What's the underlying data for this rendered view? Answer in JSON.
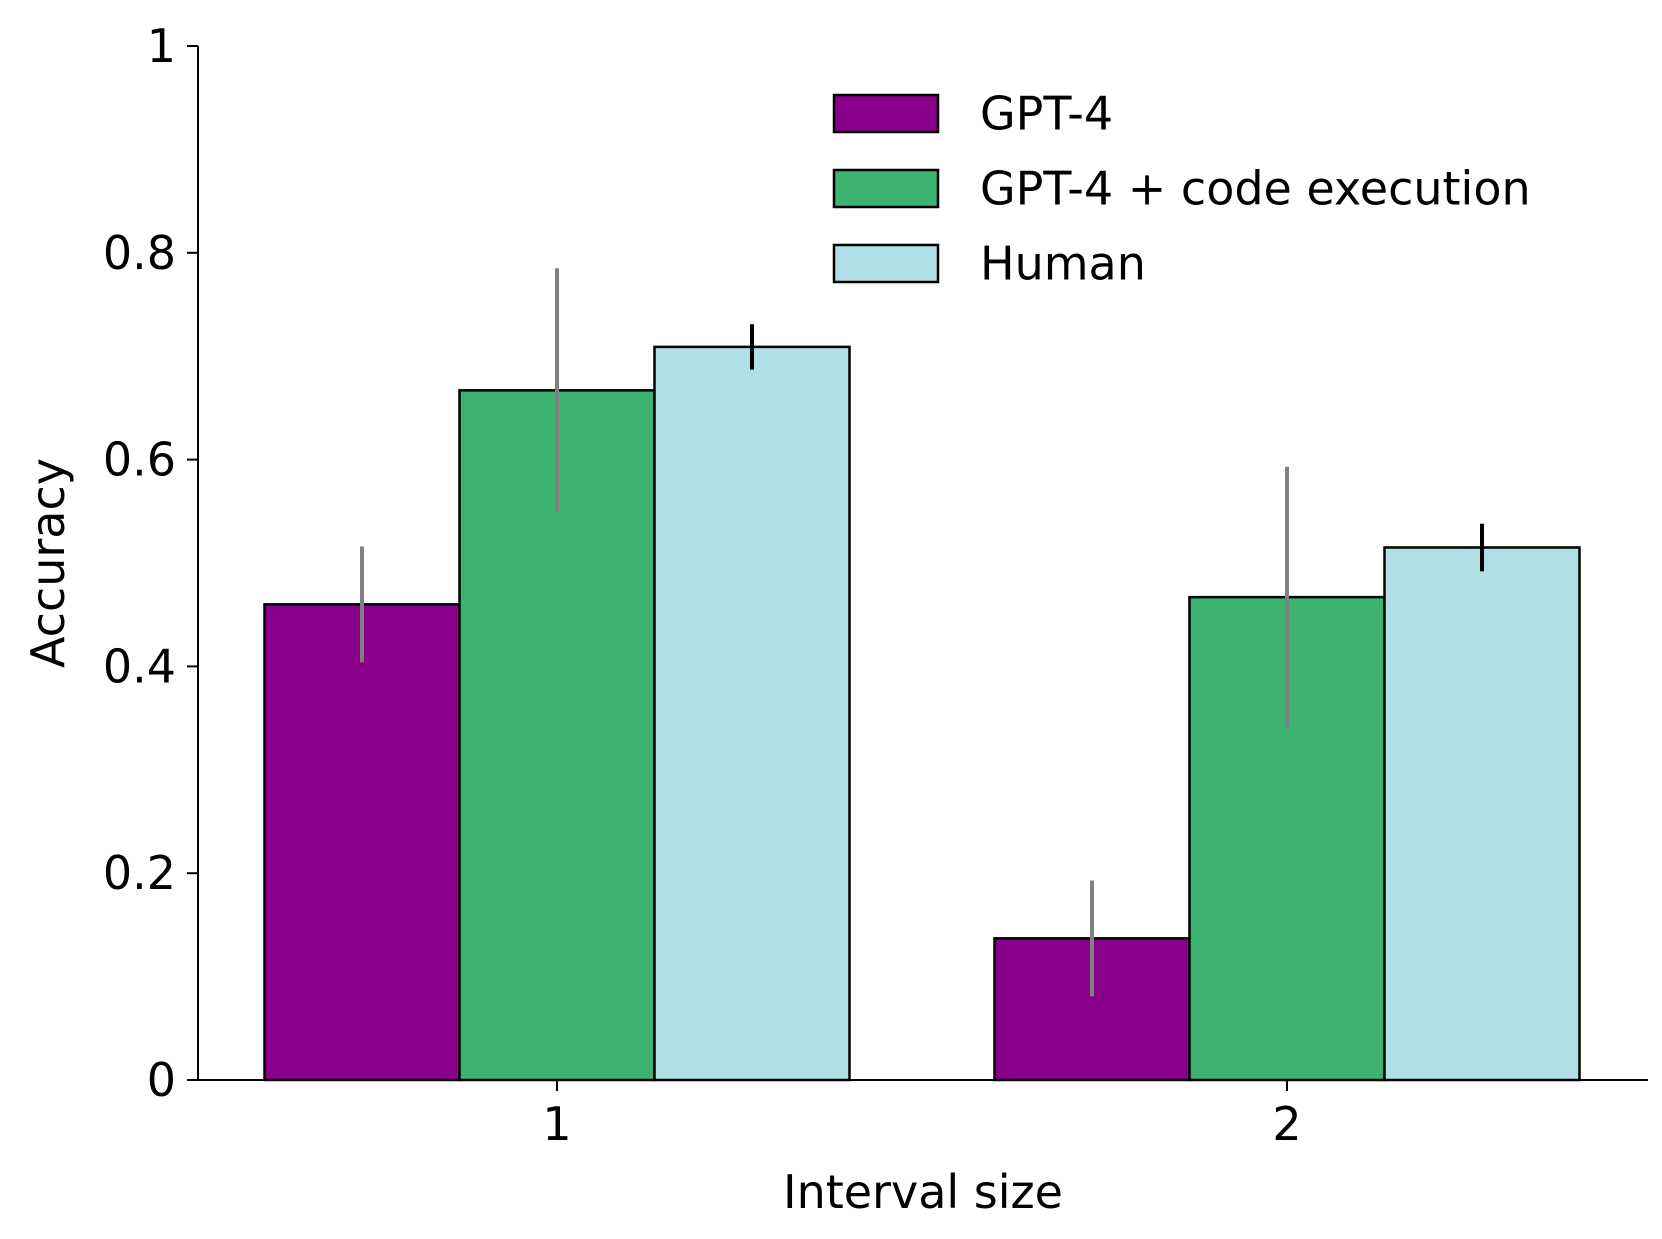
{
  "chart_data": {
    "type": "bar",
    "title": "",
    "xlabel": "Interval size",
    "ylabel": "Accuracy",
    "categories": [
      "1",
      "2"
    ],
    "ylim": [
      0,
      1
    ],
    "yticks": [
      0,
      0.2,
      0.4,
      0.6,
      0.8,
      1
    ],
    "ytick_labels": [
      "0",
      "0.2",
      "0.4",
      "0.6",
      "0.8",
      "1"
    ],
    "grid": false,
    "legend_position": "top-right",
    "series": [
      {
        "name": "GPT-4",
        "color": "#8b008b",
        "values": [
          0.46,
          0.137
        ],
        "error_low": [
          0.404,
          0.081
        ],
        "error_high": [
          0.516,
          0.193
        ],
        "error_color": "#808080"
      },
      {
        "name": "GPT-4 + code execution",
        "color": "#3cb371",
        "values": [
          0.667,
          0.467
        ],
        "error_low": [
          0.549,
          0.341
        ],
        "error_high": [
          0.785,
          0.593
        ],
        "error_color": "#808080"
      },
      {
        "name": "Human",
        "color": "#b0e0e6",
        "values": [
          0.709,
          0.515
        ],
        "error_low": [
          0.687,
          0.492
        ],
        "error_high": [
          0.731,
          0.538
        ],
        "error_color": "#000000"
      }
    ]
  }
}
